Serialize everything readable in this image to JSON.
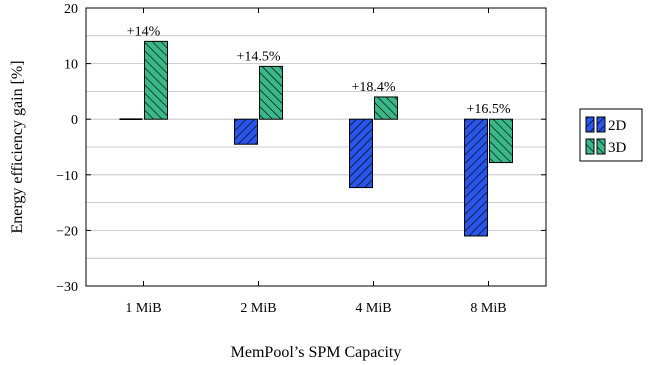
{
  "chart_data": {
    "type": "bar",
    "categories": [
      "1 MiB",
      "2 MiB",
      "4 MiB",
      "8 MiB"
    ],
    "series": [
      {
        "name": "2D",
        "values": [
          0,
          -4.5,
          -12.3,
          -21
        ],
        "color": "#2a55ea",
        "hatch": "north-east"
      },
      {
        "name": "3D",
        "values": [
          14,
          9.5,
          4,
          -7.8
        ],
        "color": "#3ab88a",
        "hatch": "north-west"
      }
    ],
    "annotations": [
      "+14%",
      "+14.5%",
      "+18.4%",
      "+16.5%"
    ],
    "xlabel": "MemPool’s SPM Capacity",
    "ylabel": "Energy efficiency gain [%]",
    "ylim": [
      -30,
      20
    ],
    "yticks": [
      -30,
      -20,
      -10,
      0,
      10,
      20
    ],
    "ytick_labels": [
      "−30",
      "−20",
      "−10",
      "0",
      "10",
      "20"
    ],
    "grid": true,
    "legend_position": "right"
  }
}
